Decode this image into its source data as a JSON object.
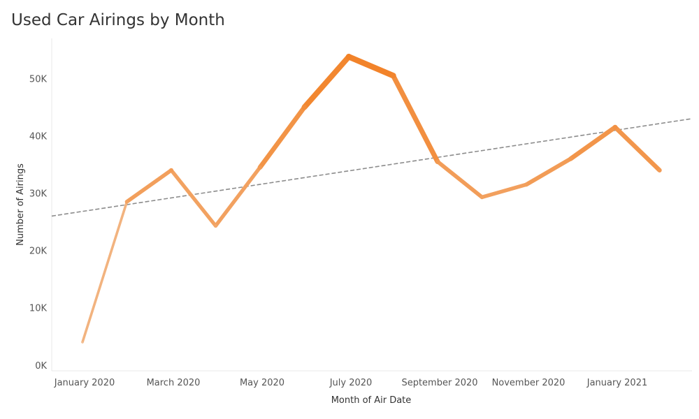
{
  "chart_data": {
    "type": "line",
    "title": "Used Car Airings by Month",
    "xlabel": "Month of Air Date",
    "ylabel": "Number of Airings",
    "x": [
      "2020-01",
      "2020-02",
      "2020-03",
      "2020-04",
      "2020-05",
      "2020-06",
      "2020-07",
      "2020-08",
      "2020-09",
      "2020-10",
      "2020-11",
      "2020-12",
      "2021-01",
      "2021-02"
    ],
    "x_tick_labels": [
      "January 2020",
      "March 2020",
      "May 2020",
      "July 2020",
      "September 2020",
      "November 2020",
      "January 2021"
    ],
    "y_tick_labels": [
      "0K",
      "10K",
      "20K",
      "30K",
      "40K",
      "50K"
    ],
    "y_ticks": [
      0,
      10000,
      20000,
      30000,
      40000,
      50000
    ],
    "ylim": [
      -1000,
      57000
    ],
    "series": [
      {
        "values": [
          4000,
          28500,
          34000,
          24300,
          34500,
          45000,
          53800,
          50500,
          35500,
          29300,
          31500,
          36000,
          41500,
          34000
        ]
      }
    ],
    "trend_line": {
      "start_value": 26000,
      "end_value": 43000,
      "style": "dashed"
    },
    "encoding": "line color and thickness increase with value",
    "colors": {
      "low": "#f3e7dc",
      "high": "#f28126",
      "trend": "#8c8c8c"
    },
    "grid": false
  }
}
